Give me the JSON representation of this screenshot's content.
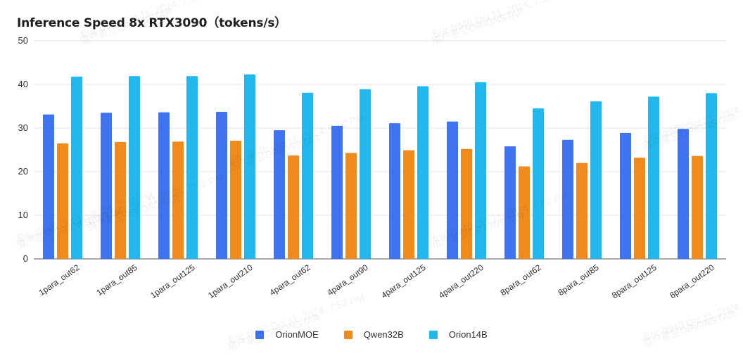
{
  "chart_data": {
    "type": "bar",
    "title": "Inference Speed 8x RTX3090（tokens/s）",
    "xlabel": "",
    "ylabel": "",
    "ylim": [
      0,
      50
    ],
    "yticks": [
      0,
      10,
      20,
      30,
      40,
      50
    ],
    "grid": true,
    "legend_position": "bottom",
    "categories": [
      "1para_out62",
      "1para_out85",
      "1para_out125",
      "1para_out210",
      "4para_out62",
      "4para_out90",
      "4para_out125",
      "4para_out220",
      "8para_out62",
      "8para_out85",
      "8para_out125",
      "8para_out220"
    ],
    "series": [
      {
        "name": "OrionMOE",
        "color": "#3f73f0",
        "values": [
          33.1,
          33.5,
          33.6,
          33.7,
          29.5,
          30.5,
          31.1,
          31.5,
          25.8,
          27.3,
          28.9,
          29.8
        ]
      },
      {
        "name": "Qwen32B",
        "color": "#f08a1c",
        "values": [
          26.5,
          26.8,
          26.9,
          27.1,
          23.7,
          24.3,
          24.9,
          25.2,
          21.2,
          22.0,
          23.2,
          23.6
        ]
      },
      {
        "name": "Orion14B",
        "color": "#22b8ee",
        "values": [
          41.8,
          41.9,
          41.9,
          42.3,
          38.1,
          38.9,
          39.6,
          40.5,
          34.5,
          36.1,
          37.2,
          38.0
        ]
      }
    ]
  },
  "watermark": {
    "lines": [
      "Eric 0940 Oct 11, 2024, 7:52 PM",
      "猎户星空ORIONSTAR"
    ]
  }
}
